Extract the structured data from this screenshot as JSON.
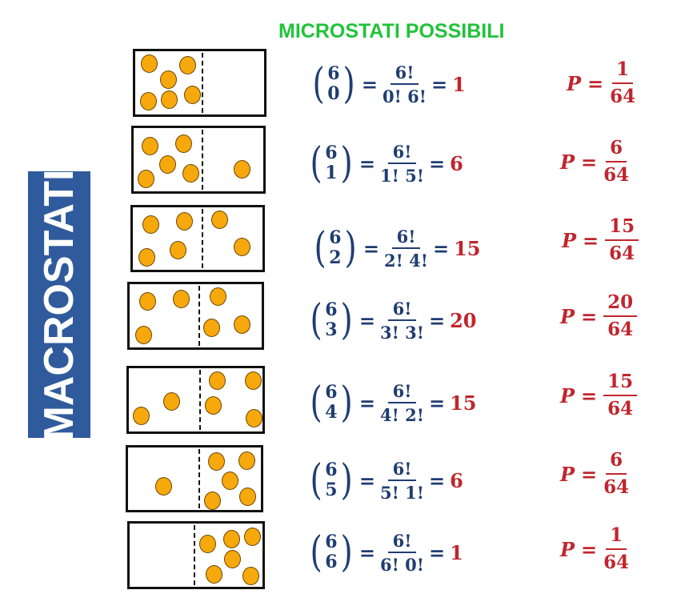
{
  "header": {
    "title": "MICROSTATI POSSIBILI"
  },
  "sidebar": {
    "label": "MACROSTATI"
  },
  "colors": {
    "title": "#22c23a",
    "banner": "#2f5b9c",
    "formula": "#1f3d72",
    "result": "#c0262d",
    "ball": "#f7a80c"
  },
  "rows": [
    {
      "n": "6",
      "k": "0",
      "numerator": "6!",
      "denominator": "0! 6!",
      "result": "1",
      "p_label": "P",
      "p_num": "1",
      "p_den": "64",
      "left_balls": 6,
      "right_balls": 0
    },
    {
      "n": "6",
      "k": "1",
      "numerator": "6!",
      "denominator": "1! 5!",
      "result": "6",
      "p_label": "P",
      "p_num": "6",
      "p_den": "64",
      "left_balls": 5,
      "right_balls": 1
    },
    {
      "n": "6",
      "k": "2",
      "numerator": "6!",
      "denominator": "2! 4!",
      "result": "15",
      "p_label": "P",
      "p_num": "15",
      "p_den": "64",
      "left_balls": 4,
      "right_balls": 2
    },
    {
      "n": "6",
      "k": "3",
      "numerator": "6!",
      "denominator": "3! 3!",
      "result": "20",
      "p_label": "P",
      "p_num": "20",
      "p_den": "64",
      "left_balls": 3,
      "right_balls": 3
    },
    {
      "n": "6",
      "k": "4",
      "numerator": "6!",
      "denominator": "4! 2!",
      "result": "15",
      "p_label": "P",
      "p_num": "15",
      "p_den": "64",
      "left_balls": 2,
      "right_balls": 4
    },
    {
      "n": "6",
      "k": "5",
      "numerator": "6!",
      "denominator": "5! 1!",
      "result": "6",
      "p_label": "P",
      "p_num": "6",
      "p_den": "64",
      "left_balls": 1,
      "right_balls": 5
    },
    {
      "n": "6",
      "k": "6",
      "numerator": "6!",
      "denominator": "6! 0!",
      "result": "1",
      "p_label": "P",
      "p_num": "1",
      "p_den": "64",
      "left_balls": 0,
      "right_balls": 6
    }
  ]
}
